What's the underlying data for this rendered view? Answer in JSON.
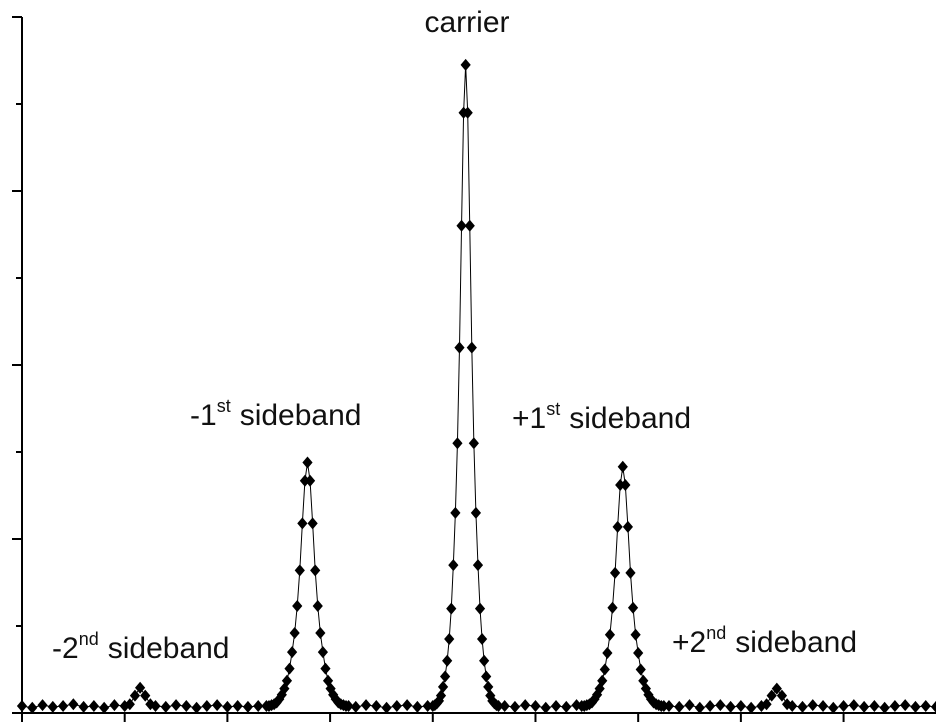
{
  "chart_data": {
    "type": "line",
    "series": [
      {
        "color": "#000000",
        "marker": "diamond",
        "x": [
          0.0,
          0.1,
          0.2,
          0.3,
          0.4,
          0.5,
          0.6,
          0.7,
          0.8,
          0.9,
          1.0,
          1.05,
          1.1,
          1.15,
          1.2,
          1.25,
          1.3,
          1.4,
          1.5,
          1.6,
          1.7,
          1.8,
          1.9,
          2.0,
          2.1,
          2.2,
          2.3,
          2.38,
          2.405,
          2.43,
          2.455,
          2.48,
          2.505,
          2.53,
          2.555,
          2.58,
          2.605,
          2.63,
          2.655,
          2.68,
          2.705,
          2.73,
          2.755,
          2.78,
          2.805,
          2.83,
          2.855,
          2.88,
          2.905,
          2.93,
          2.955,
          2.98,
          3.005,
          3.03,
          3.055,
          3.08,
          3.105,
          3.13,
          3.155,
          3.18,
          3.25,
          3.35,
          3.45,
          3.55,
          3.65,
          3.75,
          3.85,
          3.95,
          4.0,
          4.02,
          4.04,
          4.06,
          4.08,
          4.1,
          4.12,
          4.14,
          4.16,
          4.18,
          4.2,
          4.22,
          4.24,
          4.26,
          4.28,
          4.3,
          4.32,
          4.34,
          4.36,
          4.38,
          4.4,
          4.42,
          4.44,
          4.46,
          4.48,
          4.5,
          4.52,
          4.54,
          4.56,
          4.58,
          4.6,
          4.62,
          4.64,
          4.7,
          4.8,
          4.9,
          5.0,
          5.1,
          5.2,
          5.3,
          5.4,
          5.45,
          5.475,
          5.5,
          5.525,
          5.55,
          5.575,
          5.6,
          5.625,
          5.65,
          5.675,
          5.7,
          5.725,
          5.75,
          5.775,
          5.8,
          5.825,
          5.85,
          5.875,
          5.9,
          5.925,
          5.95,
          5.975,
          6.0,
          6.025,
          6.05,
          6.075,
          6.1,
          6.125,
          6.15,
          6.175,
          6.2,
          6.225,
          6.25,
          6.3,
          6.4,
          6.5,
          6.6,
          6.7,
          6.8,
          6.9,
          7.0,
          7.1,
          7.2,
          7.25,
          7.3,
          7.35,
          7.4,
          7.45,
          7.5,
          7.6,
          7.7,
          7.8,
          7.9,
          8.0,
          8.1,
          8.2,
          8.3,
          8.4,
          8.5,
          8.6,
          8.7,
          8.8,
          8.9
        ],
        "values": [
          0.08,
          0.06,
          0.09,
          0.07,
          0.08,
          0.1,
          0.07,
          0.08,
          0.06,
          0.09,
          0.08,
          0.1,
          0.2,
          0.29,
          0.2,
          0.1,
          0.08,
          0.07,
          0.09,
          0.08,
          0.06,
          0.08,
          0.09,
          0.07,
          0.08,
          0.07,
          0.08,
          0.08,
          0.08,
          0.09,
          0.1,
          0.12,
          0.16,
          0.21,
          0.28,
          0.37,
          0.51,
          0.7,
          0.92,
          1.23,
          1.64,
          2.18,
          2.67,
          2.88,
          2.67,
          2.18,
          1.64,
          1.23,
          0.92,
          0.7,
          0.51,
          0.37,
          0.28,
          0.21,
          0.16,
          0.12,
          0.1,
          0.09,
          0.08,
          0.08,
          0.07,
          0.09,
          0.08,
          0.06,
          0.08,
          0.09,
          0.07,
          0.08,
          0.08,
          0.09,
          0.11,
          0.14,
          0.2,
          0.3,
          0.42,
          0.6,
          0.85,
          1.2,
          1.7,
          2.3,
          3.1,
          4.2,
          5.6,
          6.9,
          7.45,
          6.9,
          5.6,
          4.2,
          3.1,
          2.3,
          1.7,
          1.2,
          0.85,
          0.6,
          0.42,
          0.3,
          0.2,
          0.14,
          0.11,
          0.09,
          0.08,
          0.08,
          0.07,
          0.09,
          0.08,
          0.06,
          0.08,
          0.07,
          0.09,
          0.08,
          0.08,
          0.09,
          0.1,
          0.12,
          0.16,
          0.21,
          0.28,
          0.37,
          0.5,
          0.69,
          0.9,
          1.21,
          1.61,
          2.14,
          2.62,
          2.83,
          2.62,
          2.14,
          1.61,
          1.21,
          0.9,
          0.69,
          0.5,
          0.37,
          0.28,
          0.21,
          0.16,
          0.12,
          0.1,
          0.09,
          0.08,
          0.08,
          0.08,
          0.07,
          0.09,
          0.06,
          0.08,
          0.09,
          0.07,
          0.08,
          0.06,
          0.08,
          0.1,
          0.2,
          0.28,
          0.2,
          0.1,
          0.08,
          0.07,
          0.09,
          0.08,
          0.06,
          0.08,
          0.09,
          0.07,
          0.08,
          0.06,
          0.08,
          0.09,
          0.07,
          0.08,
          0.07
        ]
      }
    ],
    "xlim": [
      0,
      8.9
    ],
    "ylim": [
      0,
      8
    ],
    "xticks": [
      0,
      1,
      2,
      3,
      4,
      5,
      6,
      7,
      8
    ],
    "yticks": [
      0,
      1,
      2,
      3,
      4,
      5,
      6,
      7,
      8
    ],
    "annotations": [
      {
        "text": "carrier"
      },
      {
        "prefix": "-1",
        "sup": "st",
        "suffix": "sideband"
      },
      {
        "prefix": "+1",
        "sup": "st",
        "suffix": "sideband"
      },
      {
        "prefix": "-2",
        "sup": "nd",
        "suffix": "sideband"
      },
      {
        "prefix": "+2",
        "sup": "nd",
        "suffix": "sideband"
      }
    ]
  }
}
